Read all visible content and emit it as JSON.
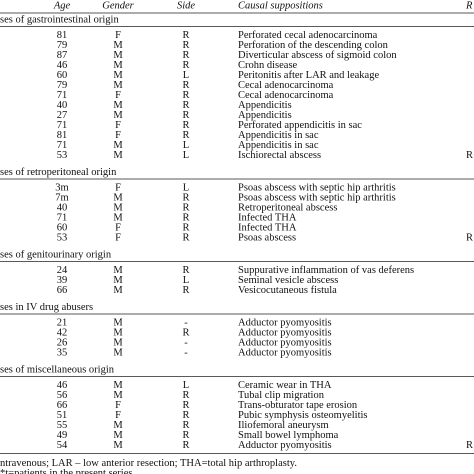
{
  "table": {
    "columns": [
      "Age",
      "Gender",
      "Side",
      "Causal suppositions",
      "R"
    ],
    "sections": [
      {
        "title": "ses of gastrointestinal origin",
        "rows": [
          [
            "81",
            "F",
            "R",
            "Perforated cecal adenocarcinoma"
          ],
          [
            "79",
            "M",
            "R",
            "Perforation of the descending colon"
          ],
          [
            "87",
            "M",
            "R",
            "Diverticular abscess of sigmoid colon"
          ],
          [
            "46",
            "M",
            "R",
            "Crohn disease"
          ],
          [
            "60",
            "M",
            "L",
            "Peritonitis after LAR and leakage"
          ],
          [
            "79",
            "M",
            "R",
            "Cecal adenocarcinoma"
          ],
          [
            "71",
            "F",
            "R",
            "Cecal adenocarcinoma"
          ],
          [
            "40",
            "M",
            "R",
            "Appendicitis"
          ],
          [
            "27",
            "M",
            "R",
            "Appendicitis"
          ],
          [
            "71",
            "F",
            "R",
            "Perforated appendicitis in sac"
          ],
          [
            "81",
            "F",
            "R",
            "Appendicitis in sac"
          ],
          [
            "71",
            "M",
            "L",
            "Appendicitis in sac"
          ],
          [
            "53",
            "M",
            "L",
            "Ischiorectal abscess",
            "R"
          ]
        ]
      },
      {
        "title": "ses of retroperitoneal origin",
        "rows": [
          [
            "3m",
            "F",
            "L",
            "Psoas abscess with septic hip arthritis"
          ],
          [
            "7m",
            "M",
            "R",
            "Psoas abscess with septic hip arthritis"
          ],
          [
            "40",
            "M",
            "R",
            "Retroperitoneal abscess"
          ],
          [
            "71",
            "M",
            "R",
            "Infected THA"
          ],
          [
            "60",
            "F",
            "R",
            "Infected THA"
          ],
          [
            "53",
            "F",
            "R",
            "Psoas abscess",
            "R"
          ]
        ]
      },
      {
        "title": "ses of genitourinary origin",
        "rows": [
          [
            "24",
            "M",
            "R",
            "Suppurative inflammation of vas deferens"
          ],
          [
            "39",
            "M",
            "L",
            "Seminal vesicle abscess"
          ],
          [
            "66",
            "M",
            "R",
            "Vesicocutaneous fistula"
          ]
        ]
      },
      {
        "title": "ses in IV drug abusers",
        "rows": [
          [
            "21",
            "M",
            "-",
            "Adductor pyomyositis"
          ],
          [
            "42",
            "M",
            "R",
            "Adductor pyomyositis"
          ],
          [
            "26",
            "M",
            "-",
            "Adductor pyomyositis"
          ],
          [
            "35",
            "M",
            "-",
            "Adductor pyomyositis"
          ]
        ]
      },
      {
        "title": "ses of miscellaneous origin",
        "rows": [
          [
            "46",
            "M",
            "L",
            "Ceramic wear in THA"
          ],
          [
            "56",
            "M",
            "R",
            "Tubal clip migration"
          ],
          [
            "66",
            "F",
            "R",
            "Trans-obturator tape erosion"
          ],
          [
            "51",
            "F",
            "R",
            "Pubic symphysis osteomyelitis"
          ],
          [
            "55",
            "M",
            "R",
            "Iliofemoral aneurysm"
          ],
          [
            "49",
            "M",
            "R",
            "Small bowel lymphoma"
          ],
          [
            "54",
            "M",
            "R",
            "Adductor pyomyositis",
            "R"
          ]
        ]
      }
    ],
    "footnotes": [
      "ntravenous; LAR – low anterior resection; THA=total hip arthroplasty.",
      "*t=patients in the present series."
    ]
  }
}
